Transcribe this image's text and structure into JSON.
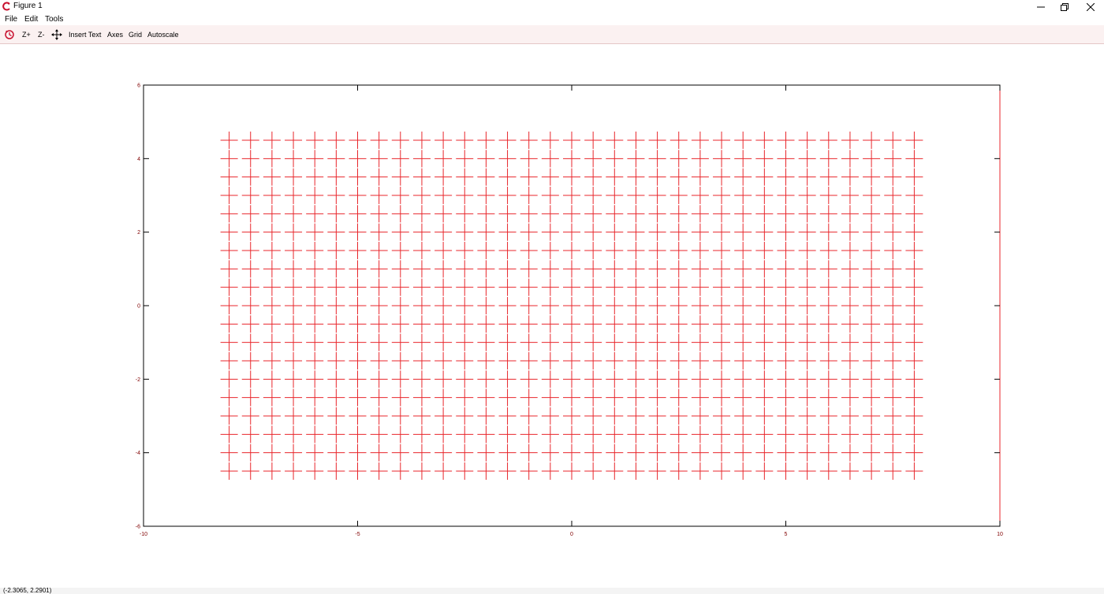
{
  "window": {
    "title": "Figure 1",
    "icon": "scilab-logo-icon",
    "controls": [
      "minimize-icon",
      "restore-icon",
      "close-icon"
    ]
  },
  "menu": {
    "items": [
      "File",
      "Edit",
      "Tools"
    ]
  },
  "toolbar": {
    "rotate_icon": "rotate-icon",
    "zoom_in_label": "Z+",
    "zoom_out_label": "Z-",
    "pan_icon": "pan-icon",
    "insert_text_label": "Insert Text",
    "axes_label": "Axes",
    "grid_label": "Grid",
    "autoscale_label": "Autoscale"
  },
  "status": {
    "coordinates": "(-2.3065, 2.2901)"
  },
  "colors": {
    "marker": "#e8262b",
    "axis": "#000000",
    "tick_label": "#800000",
    "toolbar_bg": "#fbf1f1"
  },
  "chart_data": {
    "type": "scatter",
    "marker": "+",
    "x_start": -8,
    "x_end": 8,
    "x_step": 0.5,
    "y_start": -4.5,
    "y_end": 4.5,
    "y_step": 0.5,
    "xlim": [
      -10,
      10
    ],
    "ylim": [
      -6,
      6
    ],
    "xticks": [
      -10,
      -5,
      0,
      5,
      10
    ],
    "xtick_labels": [
      "-10",
      "-5",
      "0",
      "5",
      "10"
    ],
    "yticks": [
      -6,
      -4,
      -2,
      0,
      2,
      4,
      6
    ],
    "ytick_labels": [
      "-6",
      "-4",
      "-2",
      "0",
      "2",
      "4",
      "6"
    ],
    "grid": false,
    "title": "",
    "xlabel": "",
    "ylabel": ""
  }
}
